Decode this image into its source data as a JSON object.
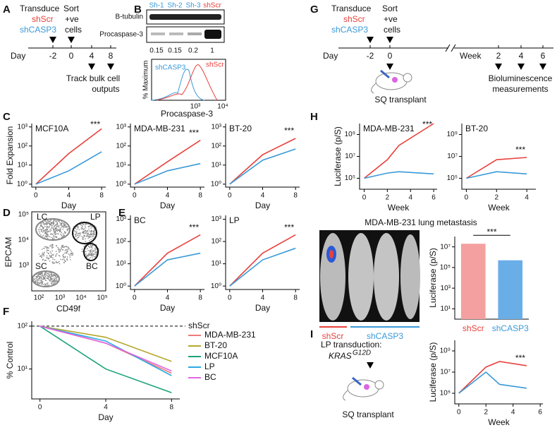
{
  "panel_labels": [
    "A",
    "B",
    "C",
    "D",
    "E",
    "F",
    "G",
    "H",
    "I"
  ],
  "panel_a": {
    "transduce": "Transduce",
    "controls": [
      "shScr",
      "shCASP3"
    ],
    "sort": [
      "Sort",
      "+ve",
      "cells"
    ],
    "day_label": "Day",
    "days": [
      "-2",
      "0",
      "4",
      "8"
    ],
    "readout": [
      "Track bulk cell",
      "outputs"
    ]
  },
  "panel_b": {
    "lanes": [
      "Sh-1",
      "Sh-2",
      "Sh-3",
      "shScr"
    ],
    "bands": [
      "B-tubulin",
      "Procaspase-3"
    ],
    "quantification": [
      0.15,
      0.15,
      0.2,
      1
    ],
    "histogram": {
      "ylabel": "% Maximum",
      "xlabel": "Procaspase-3",
      "legend": [
        "shCASP3",
        "shScr"
      ],
      "xtick_labels": [
        "10³",
        "10⁴"
      ]
    }
  },
  "plots_c": [
    {
      "type": "line",
      "title": "MCF10A",
      "ylabel": "Fold Expansion",
      "xlabel": "Day",
      "log_y": true,
      "xlim": [
        -0.5,
        8.5
      ],
      "xticks": [
        0,
        4,
        8
      ],
      "ylim": [
        0.7,
        1500
      ],
      "yticks": [
        {
          "value": 1,
          "label": "10⁰"
        },
        {
          "value": 10,
          "label": "10¹"
        },
        {
          "value": 100,
          "label": "10²"
        },
        {
          "value": 1000,
          "label": "10³"
        }
      ],
      "series": [
        {
          "color": "#e8413c",
          "x": [
            0,
            4,
            8
          ],
          "values": [
            1,
            40,
            800
          ]
        },
        {
          "color": "#3a9ad9",
          "x": [
            0,
            4,
            8
          ],
          "values": [
            1,
            5,
            50
          ]
        }
      ],
      "annotation": "***"
    },
    {
      "type": "line",
      "title": "MDA-MB-231",
      "xlabel": "Day",
      "log_y": true,
      "xlim": [
        -0.5,
        8.5
      ],
      "xticks": [
        0,
        4,
        8
      ],
      "ylim": [
        0.7,
        1500
      ],
      "yticks": [
        {
          "value": 1,
          "label": "10⁰"
        },
        {
          "value": 10,
          "label": "10¹"
        },
        {
          "value": 100,
          "label": "10²"
        },
        {
          "value": 1000,
          "label": "10³"
        }
      ],
      "series": [
        {
          "color": "#e8413c",
          "x": [
            0,
            4,
            8
          ],
          "values": [
            1,
            15,
            200
          ]
        },
        {
          "color": "#3a9ad9",
          "x": [
            0,
            4,
            8
          ],
          "values": [
            1,
            5,
            12
          ]
        }
      ],
      "annotation": "***"
    },
    {
      "type": "line",
      "title": "BT-20",
      "xlabel": "Day",
      "log_y": true,
      "xlim": [
        -0.5,
        8.5
      ],
      "xticks": [
        0,
        4,
        8
      ],
      "ylim": [
        0.7,
        1500
      ],
      "yticks": [
        {
          "value": 1,
          "label": "10⁰"
        },
        {
          "value": 10,
          "label": "10¹"
        },
        {
          "value": 100,
          "label": "10²"
        },
        {
          "value": 1000,
          "label": "10³"
        }
      ],
      "series": [
        {
          "color": "#e8413c",
          "x": [
            0,
            4,
            8
          ],
          "values": [
            1,
            35,
            250
          ]
        },
        {
          "color": "#3a9ad9",
          "x": [
            0,
            4,
            8
          ],
          "values": [
            1,
            18,
            70
          ]
        }
      ],
      "annotation": "***"
    }
  ],
  "panel_d": {
    "gates": [
      "LC",
      "LP",
      "SC",
      "BC"
    ],
    "xlabel": "CD49f",
    "ylabel": "EPCAM",
    "xtick_labels": [
      "10²",
      "10³",
      "10⁴",
      "10⁵"
    ],
    "ytick_labels": [
      "10³",
      "10⁴",
      "10⁵"
    ]
  },
  "plots_e": [
    {
      "type": "line",
      "title": "BC",
      "xlabel": "Day",
      "log_y": true,
      "xlim": [
        -0.5,
        8.5
      ],
      "xticks": [
        0,
        4,
        8
      ],
      "ylim": [
        0.7,
        1500
      ],
      "yticks": [
        {
          "value": 1,
          "label": "10⁰"
        },
        {
          "value": 10,
          "label": "10¹"
        },
        {
          "value": 100,
          "label": "10²"
        },
        {
          "value": 1000,
          "label": "10³"
        }
      ],
      "series": [
        {
          "color": "#e8413c",
          "x": [
            0,
            4,
            8
          ],
          "values": [
            1,
            30,
            200
          ]
        },
        {
          "color": "#3a9ad9",
          "x": [
            0,
            4,
            8
          ],
          "values": [
            1,
            15,
            30
          ]
        }
      ],
      "annotation": "***"
    },
    {
      "type": "line",
      "title": "LP",
      "xlabel": "Day",
      "log_y": true,
      "xlim": [
        -0.5,
        8.5
      ],
      "xticks": [
        0,
        4,
        8
      ],
      "ylim": [
        0.7,
        1500
      ],
      "yticks": [
        {
          "value": 1,
          "label": "10⁰"
        },
        {
          "value": 10,
          "label": "10¹"
        },
        {
          "value": 100,
          "label": "10²"
        },
        {
          "value": 1000,
          "label": "10³"
        }
      ],
      "series": [
        {
          "color": "#e8413c",
          "x": [
            0,
            4,
            8
          ],
          "values": [
            1,
            30,
            200
          ]
        },
        {
          "color": "#3a9ad9",
          "x": [
            0,
            4,
            8
          ],
          "values": [
            1,
            15,
            50
          ]
        }
      ],
      "annotation": "***"
    }
  ],
  "plot_f": {
    "type": "line",
    "ylabel": "% Control",
    "xlabel": "Day",
    "log_y": true,
    "xlim": [
      -0.5,
      8.5
    ],
    "xticks": [
      0,
      4,
      8
    ],
    "ylim": [
      2,
      130
    ],
    "yticks": [
      {
        "value": 10,
        "label": "10¹"
      },
      {
        "value": 100,
        "label": "10²"
      }
    ],
    "reference": {
      "value": 100,
      "label": "shScr"
    },
    "series": [
      {
        "name": "MDA-MB-231",
        "color": "#f07a7a",
        "x": [
          0,
          4,
          8
        ],
        "values": [
          100,
          40,
          8
        ]
      },
      {
        "name": "BT-20",
        "color": "#b5a62a",
        "x": [
          0,
          4,
          8
        ],
        "values": [
          100,
          55,
          15
        ]
      },
      {
        "name": "MCF10A",
        "color": "#1aa37a",
        "x": [
          0,
          4,
          8
        ],
        "values": [
          100,
          10,
          2.8
        ]
      },
      {
        "name": "LP",
        "color": "#29abe2",
        "x": [
          0,
          4,
          8
        ],
        "values": [
          100,
          45,
          7
        ]
      },
      {
        "name": "BC",
        "color": "#e066e0",
        "x": [
          0,
          4,
          8
        ],
        "values": [
          100,
          40,
          9
        ]
      }
    ]
  },
  "panel_g": {
    "transduce": "Transduce",
    "controls": [
      "shScr",
      "shCASP3"
    ],
    "sort": [
      "Sort",
      "+ve",
      "cells"
    ],
    "day_label": "Day",
    "days": [
      "-2",
      "0"
    ],
    "week_label": "Week",
    "weeks": [
      "2",
      "4",
      "6"
    ],
    "transplant": "SQ transplant",
    "readout": [
      "Bioluminescence",
      "measurements"
    ]
  },
  "plots_h": [
    {
      "type": "line",
      "title": "MDA-MB-231",
      "ylabel": "Luciferase (p/S)",
      "xlabel": "Week",
      "log_y": true,
      "xlim": [
        -0.4,
        6.3
      ],
      "xticks": [
        0,
        2,
        4,
        6
      ],
      "ylim": [
        10000,
        10000000000
      ],
      "yticks": [
        {
          "value": 100000,
          "label": "10⁵"
        },
        {
          "value": 10000000,
          "label": "10⁷"
        },
        {
          "value": 1000000000,
          "label": "10⁹"
        }
      ],
      "series": [
        {
          "color": "#e8413c",
          "x": [
            0,
            2,
            3,
            6
          ],
          "values": [
            100000,
            5000000,
            100000000,
            10000000000
          ]
        },
        {
          "color": "#3a9ad9",
          "x": [
            0,
            2,
            3,
            6
          ],
          "values": [
            100000,
            300000,
            400000,
            250000
          ]
        }
      ],
      "annotation": "***"
    },
    {
      "type": "line",
      "title": "BT-20",
      "xlabel": "Week",
      "log_y": true,
      "xlim": [
        -0.3,
        4.6
      ],
      "xticks": [
        0,
        2,
        4
      ],
      "ylim": [
        10000,
        10000000000
      ],
      "yticks": [
        {
          "value": 100000,
          "label": "10⁵"
        },
        {
          "value": 10000000,
          "label": "10⁷"
        },
        {
          "value": 1000000000,
          "label": "10⁹"
        }
      ],
      "series": [
        {
          "color": "#e8413c",
          "x": [
            0,
            2,
            4
          ],
          "values": [
            100000,
            5000000,
            8000000
          ]
        },
        {
          "color": "#3a9ad9",
          "x": [
            0,
            2,
            4
          ],
          "values": [
            100000,
            400000,
            250000
          ]
        }
      ],
      "annotation": "***"
    }
  ],
  "panel_h_lung": {
    "title": "MDA-MB-231 lung metastasis",
    "groups": [
      "shScr",
      "shCASP3"
    ],
    "chart": {
      "type": "bar",
      "ylabel": "Luciferase (p/S)",
      "log_y": true,
      "ylim": [
        1,
        100000000
      ],
      "yticks": [
        {
          "value": 10,
          "label": "10¹"
        },
        {
          "value": 1000,
          "label": "10³"
        },
        {
          "value": 100000,
          "label": "10⁵"
        },
        {
          "value": 10000000,
          "label": "10⁷"
        }
      ],
      "categories": [
        "shScr",
        "shCASP3"
      ],
      "values": [
        20000000,
        500000
      ],
      "colors": [
        "#f4a0a0",
        "#6aaee8"
      ],
      "annotation": "***"
    }
  },
  "panel_i": {
    "text": "LP transduction:",
    "gene": "KRAS",
    "allele": "G12D",
    "caption": "SQ transplant",
    "chart": {
      "type": "line",
      "ylabel": "Luciferase (p/S)",
      "xlabel": "Week",
      "log_y": true,
      "xlim": [
        -0.3,
        6.2
      ],
      "xticks": [
        0,
        2,
        4,
        6
      ],
      "ylim": [
        10000,
        10000000000
      ],
      "yticks": [
        {
          "value": 100000,
          "label": "10⁵"
        },
        {
          "value": 10000000,
          "label": "10⁷"
        },
        {
          "value": 1000000000,
          "label": "10⁹"
        }
      ],
      "series": [
        {
          "color": "#e8413c",
          "x": [
            0,
            2,
            3,
            5
          ],
          "values": [
            100000,
            30000000,
            100000000,
            40000000
          ]
        },
        {
          "color": "#3a9ad9",
          "x": [
            0,
            2,
            3,
            5
          ],
          "values": [
            100000,
            10000000,
            700000,
            300000
          ]
        }
      ],
      "annotation": "***"
    }
  }
}
